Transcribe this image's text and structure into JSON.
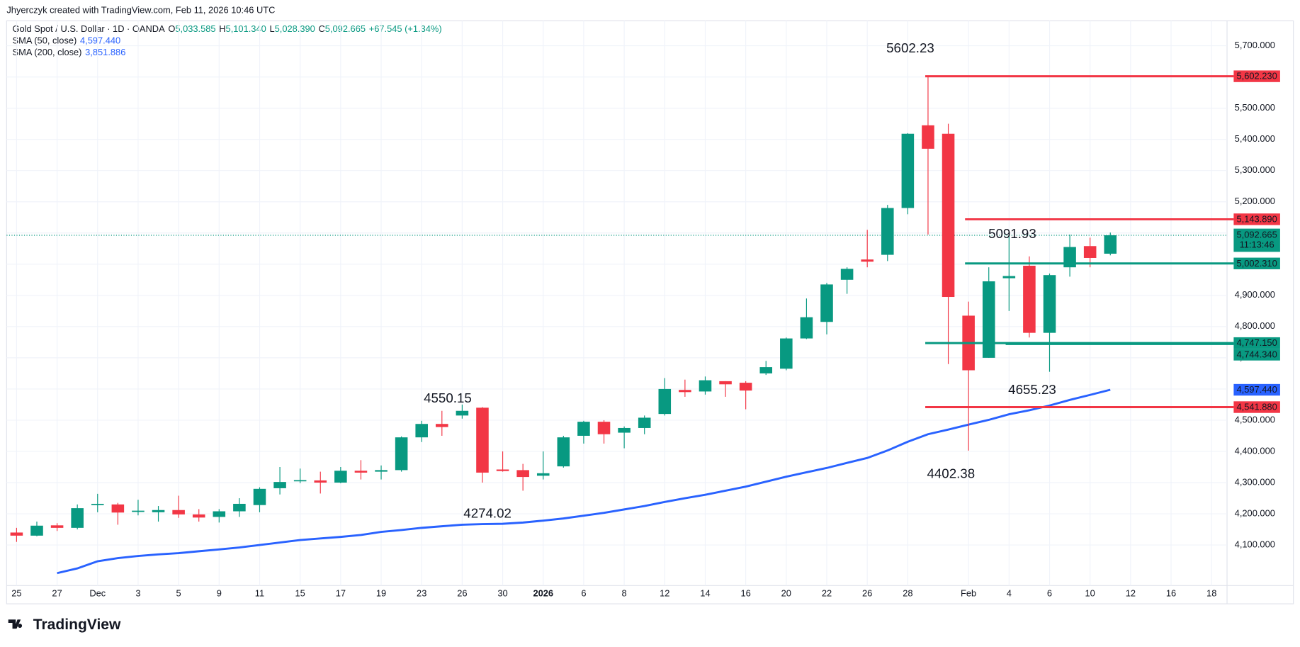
{
  "header": {
    "credit": "Jhyerczyk created with TradingView.com, Feb 11, 2026 10:46 UTC",
    "symbol": "Gold Spot / U.S. Dollar · 1D · OANDA",
    "o_key": "O",
    "open": "5,033.585",
    "h_key": "H",
    "high": "5,101.340",
    "l_key": "L",
    "low": "5,028.390",
    "c_key": "C",
    "change": "+67.545 (+1.34%)",
    "sma200_name": "SMA (200, close)",
    "sma200_value": "3,851.886"
  },
  "footer": {
    "logo": "TradingView"
  },
  "chart_data": {
    "type": "candlestick",
    "up_color": "#089981",
    "down_color": "#f23645",
    "grid": true,
    "categories": [
      "25",
      null,
      "27",
      null,
      "Dec",
      null,
      "3",
      null,
      "5",
      null,
      "9",
      null,
      "11",
      null,
      "15",
      null,
      "17",
      null,
      "19",
      null,
      "23",
      null,
      "26",
      null,
      "30",
      null,
      "2026",
      null,
      "6",
      null,
      "8",
      null,
      "12",
      null,
      "14",
      null,
      "16",
      null,
      "20",
      null,
      "22",
      null,
      "26",
      null,
      "28",
      null,
      null,
      "Feb",
      null,
      "4",
      null,
      "6",
      null,
      "10",
      null,
      "12",
      null,
      "16",
      null,
      "18"
    ],
    "open": [
      4140,
      4130,
      4163,
      4155,
      4228,
      4230,
      4207,
      4205,
      4212,
      4198,
      4190,
      4208,
      4228,
      4282,
      4305,
      4307,
      4300,
      4338,
      4335,
      4340,
      4445,
      4488,
      4515,
      4540,
      4342,
      4340,
      4322,
      4352,
      4450,
      4495,
      4460,
      4475,
      4520,
      4597,
      4592,
      4625,
      4620,
      4650,
      4665,
      4762,
      4815,
      4950,
      5015,
      5030,
      5180,
      5445,
      5418,
      4835,
      4700,
      4955,
      4995,
      4780,
      4990,
      5058,
      5033.585,
      null,
      null,
      null,
      null,
      null
    ],
    "high": [
      4155,
      4175,
      4170,
      4230,
      4264,
      4235,
      4245,
      4225,
      4258,
      4215,
      4215,
      4250,
      4285,
      4350,
      4345,
      4335,
      4350,
      4372,
      4355,
      4448,
      4498,
      4530,
      4550.15,
      4542,
      4400,
      4360,
      4400,
      4450,
      4498,
      4500,
      4480,
      4515,
      4635,
      4630,
      4640,
      4625,
      4625,
      4690,
      4765,
      4890,
      4940,
      4990,
      5110,
      5190,
      5420,
      5602.23,
      5450,
      4880,
      4990,
      5091.93,
      5025,
      4970,
      5095,
      5085,
      5101.34,
      null,
      null,
      null,
      null,
      null
    ],
    "low": [
      4110,
      4128,
      4145,
      4150,
      4205,
      4165,
      4195,
      4175,
      4187,
      4175,
      4172,
      4190,
      4205,
      4262,
      4298,
      4265,
      4298,
      4310,
      4310,
      4335,
      4430,
      4450,
      4505,
      4300,
      4335,
      4274.02,
      4310,
      4348,
      4425,
      4425,
      4410,
      4455,
      4515,
      4575,
      4582,
      4575,
      4535,
      4645,
      4660,
      4760,
      4775,
      4905,
      4990,
      5010,
      5160,
      5095,
      4680,
      4402.38,
      4700,
      4850,
      4765,
      4655.23,
      4960,
      4990,
      5028.39,
      null,
      null,
      null,
      null,
      null
    ],
    "close": [
      4130,
      4162,
      4155,
      4218,
      4232,
      4204,
      4210,
      4212,
      4198,
      4188,
      4208,
      4232,
      4280,
      4302,
      4308,
      4300,
      4338,
      4332,
      4340,
      4445,
      4488,
      4478,
      4530,
      4332,
      4337,
      4318,
      4330,
      4445,
      4495,
      4455,
      4475,
      4508,
      4600,
      4590,
      4628,
      4615,
      4595,
      4670,
      4762,
      4830,
      4935,
      4985,
      5008,
      5180,
      5418,
      5370,
      4895,
      4660,
      4945,
      4962,
      4780,
      4965,
      5055,
      5020,
      5092.665,
      null,
      null,
      null,
      null,
      null
    ],
    "sma": {
      "name": "SMA (50, close)",
      "value_label": "4,597.440",
      "color": "#2962ff",
      "values": [
        null,
        null,
        4010,
        4025,
        4048,
        4058,
        4065,
        4070,
        4074,
        4080,
        4086,
        4092,
        4100,
        4108,
        4116,
        4121,
        4126,
        4132,
        4142,
        4148,
        4155,
        4160,
        4165,
        4167,
        4168,
        4172,
        4178,
        4185,
        4194,
        4203,
        4214,
        4225,
        4238,
        4250,
        4261,
        4274,
        4287,
        4303,
        4319,
        4333,
        4347,
        4363,
        4379,
        4403,
        4431,
        4455,
        4470,
        4486,
        4501,
        4519,
        4532,
        4547,
        4565,
        4581,
        4597.44,
        null,
        null,
        null,
        null,
        null
      ]
    },
    "last_price": {
      "value": 5092.665,
      "label": "5,092.665",
      "countdown": "11:13:46"
    },
    "levels": [
      {
        "value": 5602.23,
        "label": "5,602.230",
        "color": "#f23645"
      },
      {
        "value": 5143.89,
        "label": "5,143.890",
        "color": "#f23645"
      },
      {
        "value": 5002.31,
        "label": "5,002.310",
        "color": "#089981"
      },
      {
        "value": 4747.15,
        "label": "4,747.150",
        "color": "#089981"
      },
      {
        "value": 4744.34,
        "label": "4,744.340",
        "color": "#089981"
      },
      {
        "value": 4541.88,
        "label": "4,541.880",
        "color": "#f23645"
      }
    ],
    "annotations": [
      "5602.23",
      "4550.15",
      "4274.02",
      "5091.93",
      "4655.23",
      "4402.38"
    ],
    "ylim": [
      3970,
      5780
    ],
    "yticks": [
      {
        "value": 4100,
        "label": "4,100.000"
      },
      {
        "value": 4200,
        "label": "4,200.000"
      },
      {
        "value": 4300,
        "label": "4,300.000"
      },
      {
        "value": 4400,
        "label": "4,400.000"
      },
      {
        "value": 4500,
        "label": "4,500.000"
      },
      {
        "value": 4600,
        "label": "4,600.000"
      },
      {
        "value": 4700,
        "label": "4,700.000"
      },
      {
        "value": 4800,
        "label": "4,800.000"
      },
      {
        "value": 4900,
        "label": "4,900.000"
      },
      {
        "value": 5000,
        "label": "5,000.000"
      },
      {
        "value": 5100,
        "label": "5,100.000"
      },
      {
        "value": 5200,
        "label": "5,200.000"
      },
      {
        "value": 5300,
        "label": "5,300.000"
      },
      {
        "value": 5400,
        "label": "5,400.000"
      },
      {
        "value": 5500,
        "label": "5,500.000"
      },
      {
        "value": 5600,
        "label": "5,600.000"
      },
      {
        "value": 5700,
        "label": "5,700.000"
      }
    ]
  }
}
